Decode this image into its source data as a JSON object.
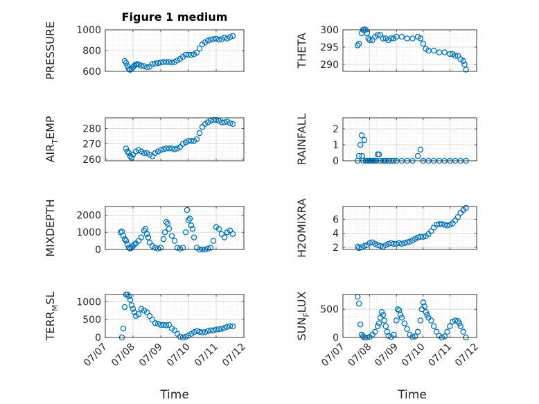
{
  "figure_title": "Figure 1 medium",
  "x_axis_label": "Time",
  "x_ticks": [
    "07/07",
    "07/08",
    "07/09",
    "07/10",
    "07/11",
    "07/12"
  ],
  "chart_data": [
    {
      "id": "pressure",
      "type": "scatter",
      "ylabel_main": "PRESSURE",
      "ylabel_sub": "",
      "ylabel_tail": "",
      "ylim": [
        600,
        1000
      ],
      "yticks": [
        600,
        800,
        1000
      ],
      "yticklabels": [
        "600",
        "800",
        "1000"
      ],
      "marker_color": "#0072BD",
      "grid": true,
      "x": [
        7.7,
        7.75,
        7.8,
        7.85,
        7.9,
        7.95,
        8.0,
        8.05,
        8.1,
        8.15,
        8.2,
        8.3,
        8.4,
        8.5,
        8.6,
        8.7,
        8.8,
        8.9,
        9.0,
        9.1,
        9.2,
        9.3,
        9.4,
        9.5,
        9.6,
        9.7,
        9.8,
        9.9,
        10.0,
        10.1,
        10.2,
        10.3,
        10.4,
        10.5,
        10.6,
        10.7,
        10.8,
        10.9,
        11.0,
        11.1,
        11.2,
        11.3,
        11.4,
        11.5,
        11.6
      ],
      "y": [
        700,
        680,
        650,
        625,
        615,
        625,
        640,
        655,
        665,
        670,
        665,
        655,
        650,
        640,
        645,
        670,
        675,
        680,
        685,
        690,
        690,
        690,
        685,
        690,
        705,
        720,
        740,
        760,
        760,
        760,
        765,
        780,
        820,
        860,
        880,
        895,
        905,
        910,
        915,
        905,
        910,
        925,
        915,
        930,
        940
      ]
    },
    {
      "id": "theta",
      "type": "scatter",
      "ylabel_main": "THETA",
      "ylabel_sub": "",
      "ylabel_tail": "",
      "ylim": [
        288,
        300
      ],
      "yticks": [
        290,
        295,
        300
      ],
      "yticklabels": [
        "290",
        "295",
        "300"
      ],
      "marker_color": "#0072BD",
      "grid": true,
      "x": [
        7.55,
        7.6,
        7.7,
        7.75,
        7.8,
        7.85,
        7.9,
        7.95,
        8.0,
        8.1,
        8.2,
        8.3,
        8.4,
        8.5,
        8.6,
        8.7,
        8.8,
        8.9,
        9.0,
        9.2,
        9.4,
        9.6,
        9.8,
        9.9,
        10.0,
        10.1,
        10.2,
        10.4,
        10.6,
        10.8,
        11.0,
        11.1,
        11.2,
        11.3,
        11.4,
        11.5,
        11.55,
        11.6
      ],
      "y": [
        295.5,
        296,
        299,
        300,
        300.1,
        300,
        299,
        297.5,
        297,
        297,
        298,
        298.5,
        298.5,
        297.5,
        297.5,
        297,
        297.5,
        297.5,
        298,
        298,
        297.5,
        297.5,
        298,
        297.5,
        296,
        294.5,
        294,
        294,
        293.5,
        293.5,
        293,
        293,
        292.5,
        292.5,
        291.5,
        291,
        290,
        288.5
      ]
    },
    {
      "id": "air-temp",
      "type": "scatter",
      "ylabel_main": "AIR",
      "ylabel_sub": "T",
      "ylabel_tail": "EMP",
      "ylim": [
        259,
        287
      ],
      "yticks": [
        260,
        270,
        280
      ],
      "yticklabels": [
        "260",
        "270",
        "280"
      ],
      "marker_color": "#0072BD",
      "grid": true,
      "x": [
        7.75,
        7.8,
        7.85,
        7.9,
        7.95,
        8.0,
        8.1,
        8.2,
        8.3,
        8.4,
        8.5,
        8.6,
        8.7,
        8.8,
        8.9,
        9.0,
        9.1,
        9.2,
        9.3,
        9.4,
        9.5,
        9.6,
        9.7,
        9.8,
        9.9,
        10.0,
        10.1,
        10.2,
        10.3,
        10.4,
        10.5,
        10.6,
        10.7,
        10.8,
        10.9,
        11.0,
        11.1,
        11.2,
        11.3,
        11.4,
        11.5,
        11.6
      ],
      "y": [
        267,
        265,
        264,
        262,
        261,
        263,
        265,
        266,
        265,
        264,
        264,
        263,
        262,
        264,
        265,
        266,
        266.5,
        267,
        267,
        267,
        266.5,
        267,
        268,
        270,
        271,
        272,
        272,
        272,
        273,
        277,
        281,
        283,
        284,
        285,
        285.5,
        285.5,
        285,
        284,
        284,
        284.5,
        283.5,
        283
      ]
    },
    {
      "id": "rainfall",
      "type": "scatter",
      "ylabel_main": "RAINFALL",
      "ylabel_sub": "",
      "ylabel_tail": "",
      "ylim": [
        0,
        2.7
      ],
      "yticks": [
        0,
        1,
        2
      ],
      "yticklabels": [
        "0",
        "1",
        "2"
      ],
      "marker_color": "#0072BD",
      "grid": true,
      "x": [
        7.55,
        7.6,
        7.65,
        7.7,
        7.72,
        7.75,
        7.8,
        7.85,
        7.9,
        7.95,
        8.0,
        8.05,
        8.1,
        8.15,
        8.2,
        8.25,
        8.3,
        8.35,
        8.4,
        8.5,
        8.55,
        8.6,
        8.7,
        8.8,
        8.9,
        9.0,
        9.2,
        9.4,
        9.6,
        9.8,
        9.9,
        10.0,
        10.2,
        10.4,
        10.6,
        10.8,
        11.0,
        11.2,
        11.4,
        11.6
      ],
      "y": [
        0,
        0.3,
        1.0,
        1.6,
        0.3,
        0,
        1.3,
        0,
        0,
        0,
        0,
        0,
        0,
        0,
        0,
        0,
        0.4,
        0.4,
        0,
        0,
        0,
        0,
        0,
        0,
        0,
        0,
        0,
        0,
        0,
        0.3,
        0.7,
        0,
        0,
        0,
        0,
        0,
        0,
        0,
        0,
        0
      ]
    },
    {
      "id": "mixdepth",
      "type": "scatter",
      "ylabel_main": "MIXDEPTH",
      "ylabel_sub": "",
      "ylabel_tail": "",
      "ylim": [
        0,
        2500
      ],
      "yticks": [
        0,
        1000,
        2000
      ],
      "yticklabels": [
        "0",
        "1000",
        "2000"
      ],
      "marker_color": "#0072BD",
      "grid": true,
      "x": [
        7.55,
        7.6,
        7.65,
        7.7,
        7.75,
        7.8,
        7.85,
        7.9,
        7.95,
        8.0,
        8.05,
        8.1,
        8.2,
        8.3,
        8.4,
        8.45,
        8.5,
        8.55,
        8.6,
        8.7,
        8.8,
        8.9,
        9.0,
        9.1,
        9.15,
        9.2,
        9.25,
        9.3,
        9.4,
        9.5,
        9.6,
        9.7,
        9.8,
        9.9,
        9.95,
        10.0,
        10.05,
        10.1,
        10.15,
        10.2,
        10.3,
        10.4,
        10.5,
        10.6,
        10.7,
        10.8,
        10.9,
        11.0,
        11.1,
        11.2,
        11.3,
        11.4,
        11.5,
        11.6
      ],
      "y": [
        1000,
        1050,
        800,
        600,
        500,
        300,
        100,
        50,
        100,
        200,
        300,
        350,
        500,
        700,
        1100,
        1200,
        900,
        700,
        400,
        200,
        100,
        50,
        100,
        600,
        1000,
        1600,
        1500,
        1200,
        800,
        500,
        100,
        50,
        100,
        1000,
        2300,
        1700,
        1800,
        1400,
        1200,
        700,
        100,
        0,
        0,
        0,
        50,
        100,
        500,
        1300,
        1200,
        900,
        700,
        1000,
        1100,
        900
      ]
    },
    {
      "id": "h2omixra",
      "type": "scatter",
      "ylabel_main": "H2OMIXRA",
      "ylabel_sub": "",
      "ylabel_tail": "",
      "ylim": [
        1.7,
        7.8
      ],
      "yticks": [
        2,
        4,
        6
      ],
      "yticklabels": [
        "2",
        "4",
        "6"
      ],
      "marker_color": "#0072BD",
      "grid": true,
      "x": [
        7.55,
        7.6,
        7.7,
        7.8,
        7.9,
        8.0,
        8.1,
        8.2,
        8.3,
        8.4,
        8.5,
        8.6,
        8.7,
        8.8,
        8.9,
        9.0,
        9.1,
        9.2,
        9.3,
        9.4,
        9.5,
        9.6,
        9.7,
        9.8,
        9.9,
        10.0,
        10.1,
        10.2,
        10.3,
        10.4,
        10.5,
        10.6,
        10.7,
        10.8,
        10.9,
        11.0,
        11.1,
        11.2,
        11.3,
        11.4,
        11.5,
        11.6
      ],
      "y": [
        2.1,
        1.9,
        2.0,
        2.2,
        2.3,
        2.6,
        2.7,
        2.5,
        2.3,
        2.2,
        2.1,
        2.3,
        2.5,
        2.6,
        2.5,
        2.5,
        2.6,
        2.5,
        2.6,
        2.7,
        2.8,
        3.0,
        3.2,
        3.4,
        3.5,
        3.5,
        3.6,
        3.9,
        4.3,
        4.8,
        5.2,
        5.3,
        5.3,
        5.2,
        5.1,
        5.2,
        5.4,
        5.8,
        6.3,
        6.9,
        7.3,
        7.6
      ]
    },
    {
      "id": "terr-msl",
      "type": "scatter",
      "ylabel_main": "TERR",
      "ylabel_sub": "M",
      "ylabel_tail": "SL",
      "ylim": [
        0,
        1200
      ],
      "yticks": [
        0,
        500,
        1000
      ],
      "yticklabels": [
        "0",
        "500",
        "1000"
      ],
      "marker_color": "#0072BD",
      "grid": true,
      "x": [
        7.6,
        7.65,
        7.7,
        7.75,
        7.8,
        7.85,
        7.9,
        7.95,
        8.0,
        8.05,
        8.1,
        8.2,
        8.3,
        8.4,
        8.5,
        8.6,
        8.7,
        8.8,
        8.9,
        9.0,
        9.1,
        9.2,
        9.3,
        9.4,
        9.5,
        9.6,
        9.7,
        9.8,
        9.9,
        10.0,
        10.1,
        10.2,
        10.3,
        10.4,
        10.5,
        10.6,
        10.7,
        10.8,
        10.9,
        11.0,
        11.1,
        11.2,
        11.3,
        11.4,
        11.5,
        11.6
      ],
      "y": [
        0,
        250,
        850,
        1200,
        1200,
        1150,
        1050,
        900,
        800,
        700,
        600,
        650,
        800,
        750,
        700,
        600,
        500,
        400,
        380,
        350,
        350,
        340,
        350,
        250,
        200,
        100,
        20,
        0,
        20,
        50,
        100,
        150,
        180,
        160,
        140,
        150,
        180,
        200,
        200,
        220,
        230,
        240,
        270,
        300,
        320,
        310
      ]
    },
    {
      "id": "sun-flux",
      "type": "scatter",
      "ylabel_main": "SUN",
      "ylabel_sub": "F",
      "ylabel_tail": "LUX",
      "ylim": [
        0,
        760
      ],
      "yticks": [
        0,
        500
      ],
      "yticklabels": [
        "0",
        "500"
      ],
      "marker_color": "#0072BD",
      "grid": true,
      "x": [
        7.55,
        7.6,
        7.65,
        7.7,
        7.75,
        7.8,
        7.9,
        8.0,
        8.1,
        8.2,
        8.3,
        8.35,
        8.4,
        8.45,
        8.5,
        8.55,
        8.6,
        8.65,
        8.7,
        8.8,
        8.9,
        9.0,
        9.05,
        9.1,
        9.15,
        9.2,
        9.3,
        9.4,
        9.5,
        9.6,
        9.7,
        9.8,
        9.9,
        9.95,
        10.0,
        10.05,
        10.1,
        10.15,
        10.2,
        10.3,
        10.4,
        10.5,
        10.6,
        10.7,
        10.8,
        10.9,
        11.0,
        11.1,
        11.2,
        11.3,
        11.35,
        11.4,
        11.5,
        11.6
      ],
      "y": [
        720,
        600,
        230,
        50,
        20,
        0,
        0,
        10,
        50,
        100,
        200,
        250,
        350,
        450,
        400,
        300,
        200,
        100,
        30,
        10,
        50,
        300,
        500,
        480,
        400,
        350,
        250,
        150,
        50,
        10,
        20,
        100,
        300,
        500,
        620,
        550,
        450,
        400,
        350,
        300,
        200,
        100,
        30,
        0,
        20,
        100,
        200,
        280,
        300,
        290,
        250,
        200,
        100,
        0
      ]
    }
  ]
}
